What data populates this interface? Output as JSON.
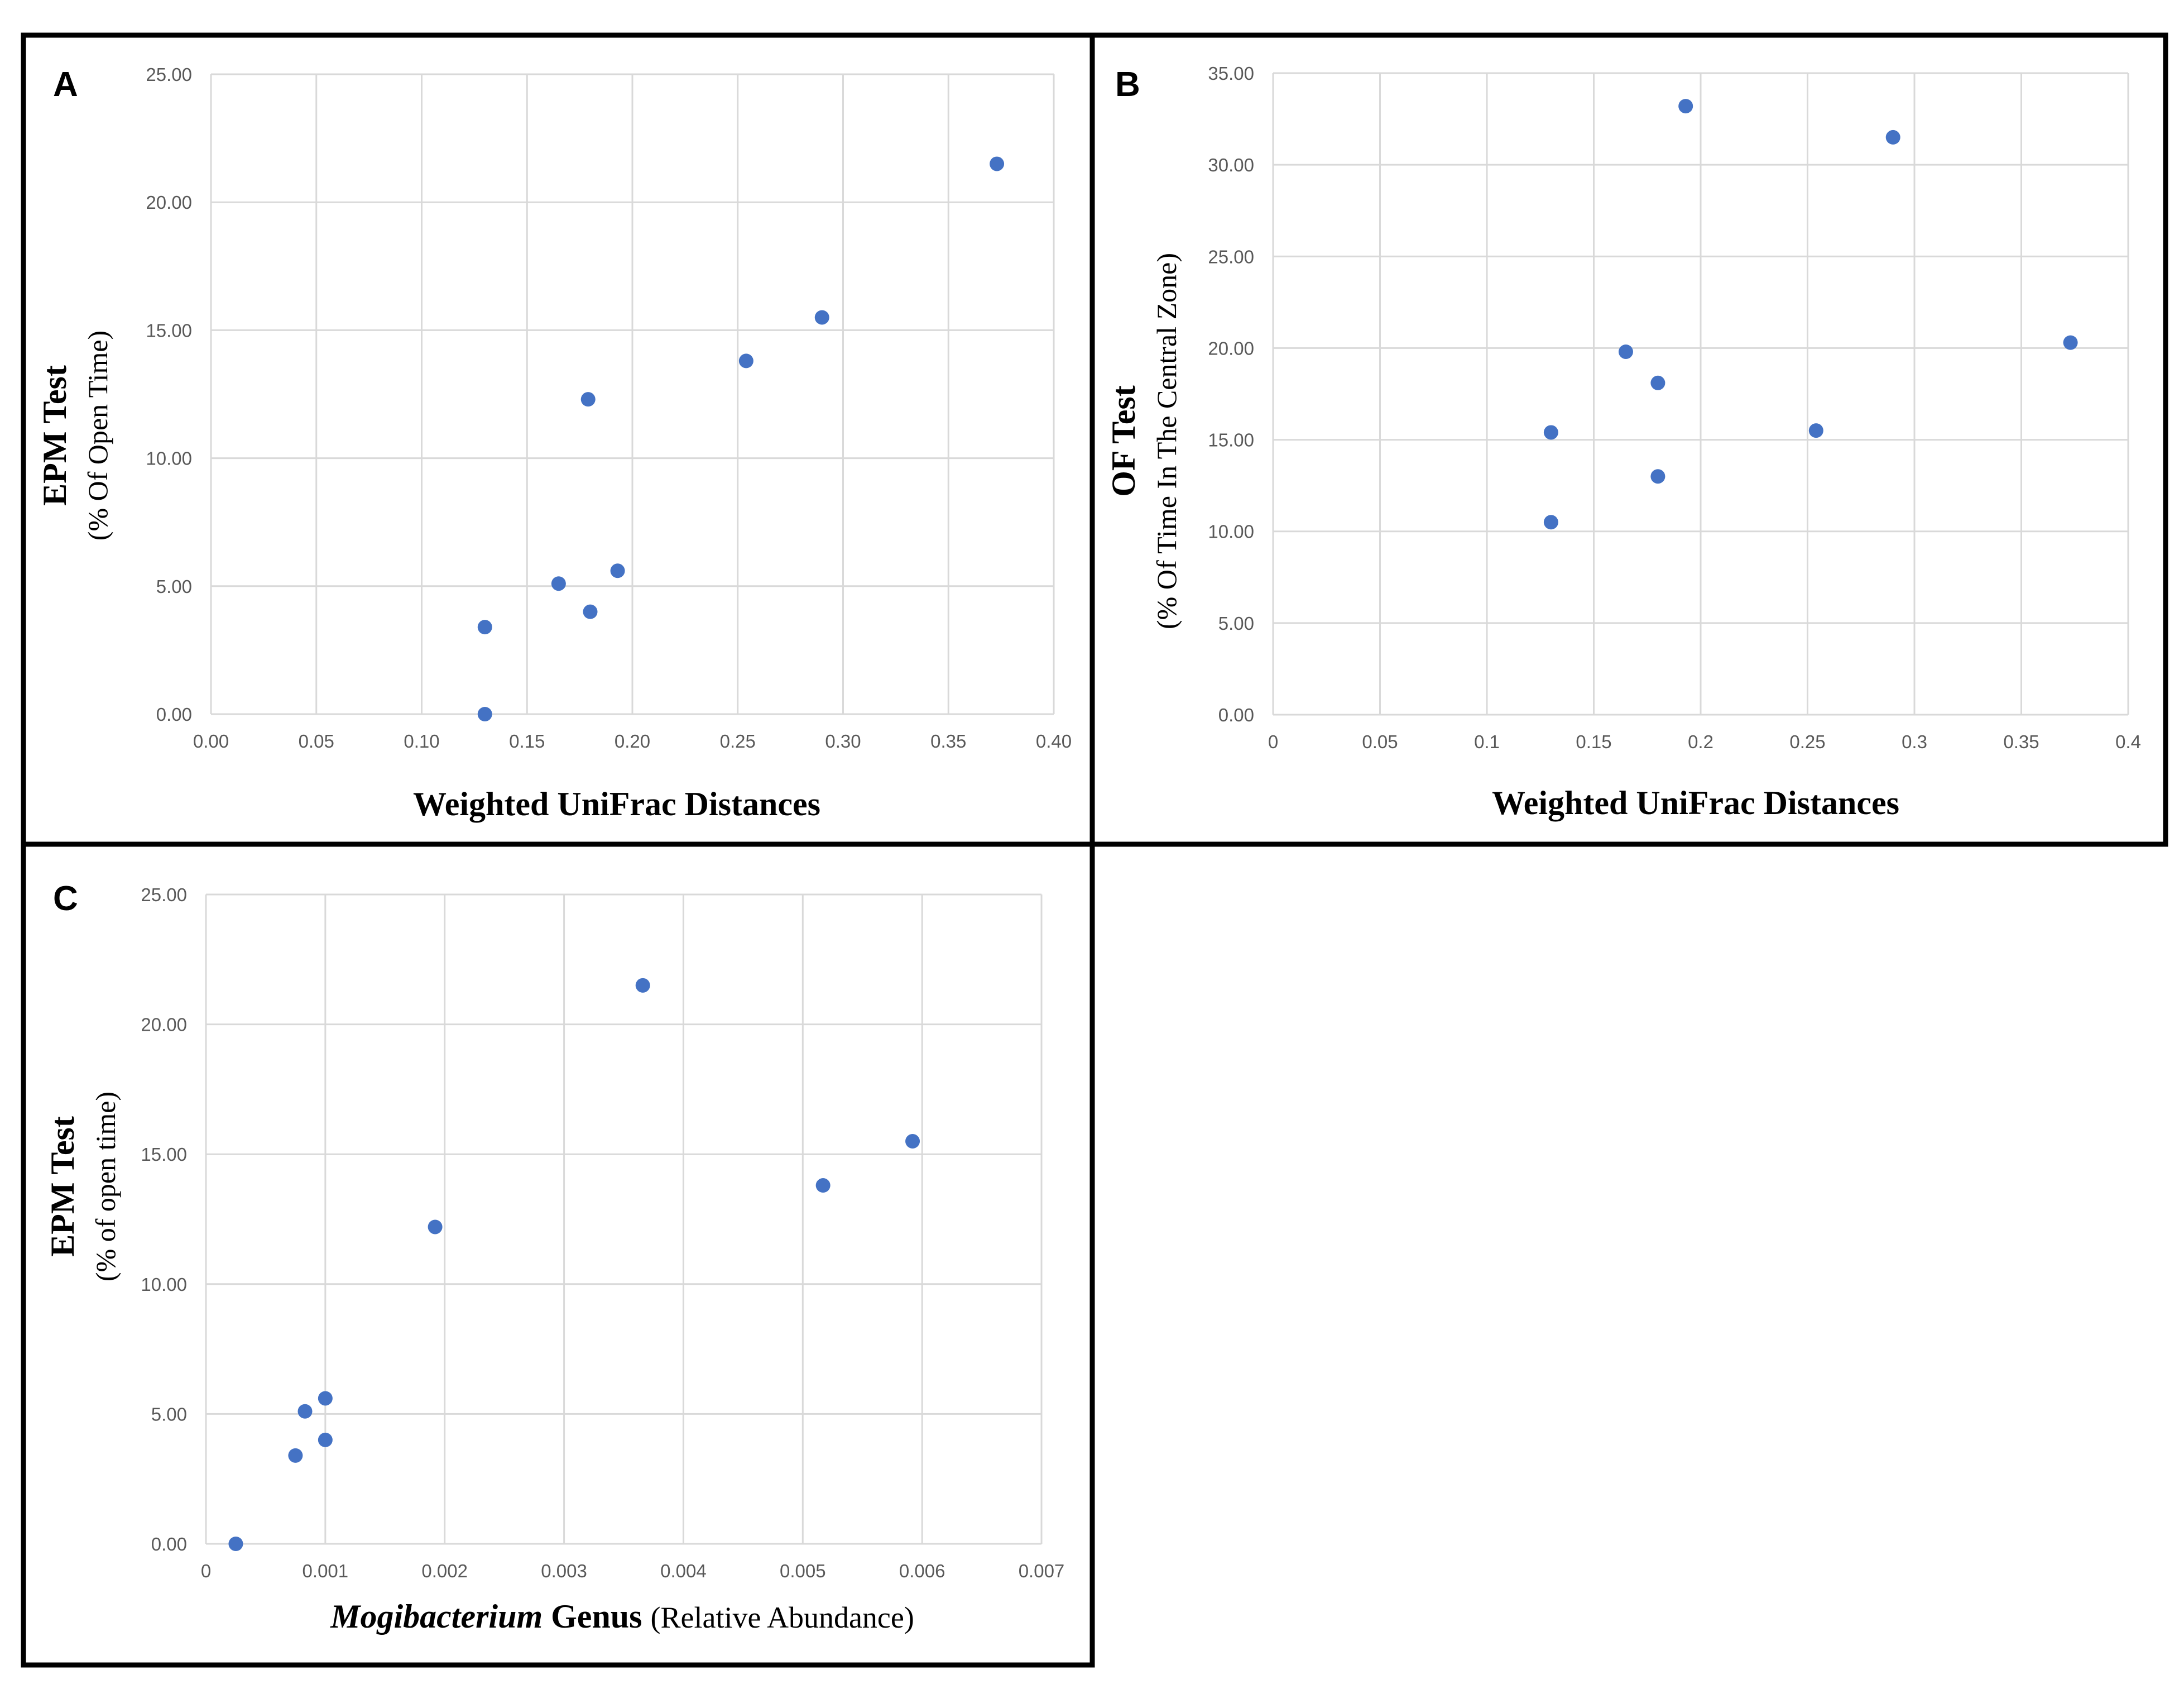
{
  "colors": {
    "marker": "#4472c4",
    "grid": "#d9d9d9",
    "frame": "#000000",
    "tick_text": "#595959"
  },
  "chart_data": [
    {
      "panel": "A",
      "type": "scatter",
      "title": "",
      "xlabel": "Weighted UniFrac Distances",
      "ylabel": "EPM Test",
      "ylabel_sub": "(% Of Open Time)",
      "xlim": [
        0,
        0.4
      ],
      "ylim": [
        0,
        25
      ],
      "x_ticks": [
        "0.00",
        "0.05",
        "0.10",
        "0.15",
        "0.20",
        "0.25",
        "0.30",
        "0.35",
        "0.40"
      ],
      "y_ticks": [
        "0.00",
        "5.00",
        "10.00",
        "15.00",
        "20.00",
        "25.00"
      ],
      "grid": true,
      "points": [
        {
          "x": 0.13,
          "y": 0.0
        },
        {
          "x": 0.13,
          "y": 3.4
        },
        {
          "x": 0.165,
          "y": 5.1
        },
        {
          "x": 0.18,
          "y": 4.0
        },
        {
          "x": 0.193,
          "y": 5.6
        },
        {
          "x": 0.179,
          "y": 12.3
        },
        {
          "x": 0.254,
          "y": 13.8
        },
        {
          "x": 0.29,
          "y": 15.5
        },
        {
          "x": 0.373,
          "y": 21.5
        }
      ]
    },
    {
      "panel": "B",
      "type": "scatter",
      "title": "",
      "xlabel": "Weighted UniFrac Distances",
      "ylabel": "OF Test",
      "ylabel_sub": "(% Of Time In The Central Zone)",
      "xlim": [
        0,
        0.4
      ],
      "ylim": [
        0,
        35
      ],
      "x_ticks": [
        "0",
        "0.05",
        "0.1",
        "0.15",
        "0.2",
        "0.25",
        "0.3",
        "0.35",
        "0.4"
      ],
      "y_ticks": [
        "0.00",
        "5.00",
        "10.00",
        "15.00",
        "20.00",
        "25.00",
        "30.00",
        "35.00"
      ],
      "grid": true,
      "points": [
        {
          "x": 0.13,
          "y": 10.5
        },
        {
          "x": 0.13,
          "y": 15.4
        },
        {
          "x": 0.165,
          "y": 19.8
        },
        {
          "x": 0.18,
          "y": 18.1
        },
        {
          "x": 0.18,
          "y": 13.0
        },
        {
          "x": 0.193,
          "y": 33.2
        },
        {
          "x": 0.254,
          "y": 15.5
        },
        {
          "x": 0.29,
          "y": 31.5
        },
        {
          "x": 0.373,
          "y": 20.3
        }
      ]
    },
    {
      "panel": "C",
      "type": "scatter",
      "title": "",
      "xlabel_italic": "Mogibacterium",
      "xlabel_bold": "Genus",
      "xlabel_plain": "(Relative Abundance)",
      "ylabel": "EPM Test",
      "ylabel_sub": "(% of open time)",
      "xlim": [
        0,
        0.007
      ],
      "ylim": [
        0,
        25
      ],
      "x_ticks": [
        "0",
        "0.001",
        "0.002",
        "0.003",
        "0.004",
        "0.005",
        "0.006",
        "0.007"
      ],
      "y_ticks": [
        "0.00",
        "5.00",
        "10.00",
        "15.00",
        "20.00",
        "25.00"
      ],
      "grid": true,
      "points": [
        {
          "x": 0.00025,
          "y": 0.0
        },
        {
          "x": 0.00075,
          "y": 3.4
        },
        {
          "x": 0.00083,
          "y": 5.1
        },
        {
          "x": 0.001,
          "y": 5.6
        },
        {
          "x": 0.001,
          "y": 4.0
        },
        {
          "x": 0.00192,
          "y": 12.2
        },
        {
          "x": 0.00366,
          "y": 21.5
        },
        {
          "x": 0.00517,
          "y": 13.8
        },
        {
          "x": 0.00592,
          "y": 15.5
        }
      ]
    }
  ]
}
